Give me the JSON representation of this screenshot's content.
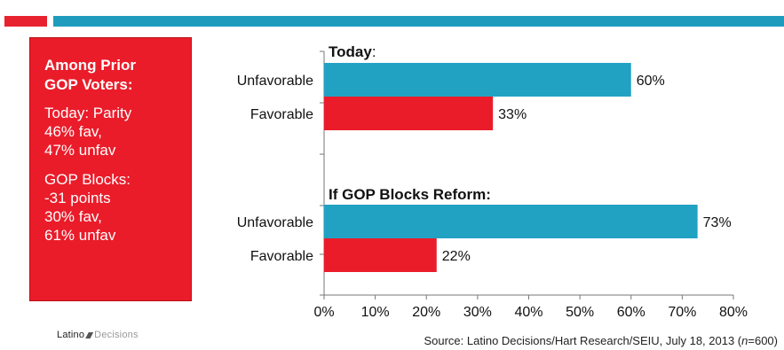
{
  "sidebar": {
    "heading_line1": "Among Prior",
    "heading_line2": "GOP Voters:",
    "today_line1": "Today: Parity",
    "today_line2": "46% fav,",
    "today_line3": "47% unfav",
    "blocks_line1": "GOP Blocks:",
    "blocks_line2": "-31 points",
    "blocks_line3": "30% fav,",
    "blocks_line4": "61% unfav"
  },
  "logo": {
    "part1": "Latino",
    "part2": "Decisions"
  },
  "source": {
    "prefix": "Source: Latino Decisions/Hart Research/SEIU, July 18, 2013 (",
    "n_symbol": "n",
    "suffix": "=600)"
  },
  "colors": {
    "accent_red": "#ea1c2a",
    "accent_blue": "#22a2c3",
    "background": "#ffffff"
  },
  "chart_data": {
    "type": "bar",
    "orientation": "horizontal",
    "groups": [
      {
        "title_bold": "Today",
        "title_suffix": ":",
        "bars": [
          {
            "category": "Unfavorable",
            "value": 60,
            "label": "60%",
            "color": "#22a2c3"
          },
          {
            "category": "Favorable",
            "value": 33,
            "label": "33%",
            "color": "#ea1c2a"
          }
        ]
      },
      {
        "title_bold": "If GOP Blocks Reform:",
        "title_suffix": "",
        "bars": [
          {
            "category": "Unfavorable",
            "value": 73,
            "label": "73%",
            "color": "#22a2c3"
          },
          {
            "category": "Favorable",
            "value": 22,
            "label": "22%",
            "color": "#ea1c2a"
          }
        ]
      }
    ],
    "xlim": [
      0,
      80
    ],
    "xticks": [
      "0%",
      "10%",
      "20%",
      "30%",
      "40%",
      "50%",
      "60%",
      "70%",
      "80%"
    ],
    "grid": false,
    "legend": "none"
  }
}
